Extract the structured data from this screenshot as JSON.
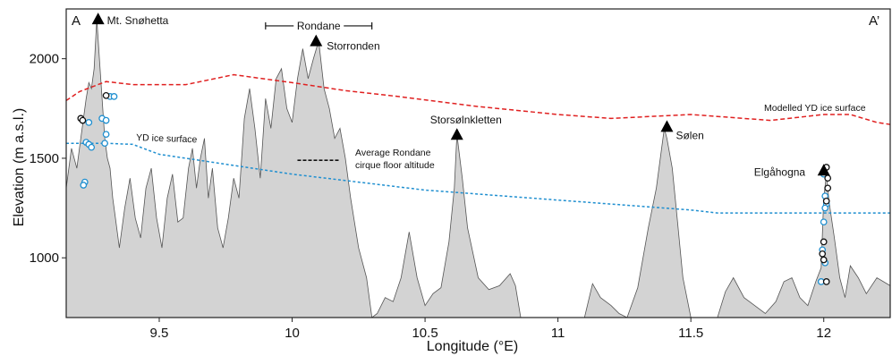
{
  "chart_data": {
    "type": "area",
    "xlabel": "Longitude (°E)",
    "ylabel": "Elevation (m a.s.l.)",
    "xlim": [
      9.15,
      12.25
    ],
    "ylim": [
      700,
      2250
    ],
    "xticks": [
      9.5,
      10,
      10.5,
      11,
      11.5,
      12
    ],
    "yticks": [
      1000,
      1500,
      2000
    ],
    "section_labels": {
      "start": "A",
      "end": "A’"
    },
    "terrain_profile": {
      "x": [
        9.15,
        9.17,
        9.19,
        9.205,
        9.215,
        9.225,
        9.235,
        9.245,
        9.255,
        9.265,
        9.275,
        9.285,
        9.295,
        9.305,
        9.315,
        9.325,
        9.335,
        9.35,
        9.37,
        9.39,
        9.41,
        9.43,
        9.45,
        9.47,
        9.49,
        9.51,
        9.53,
        9.55,
        9.57,
        9.59,
        9.61,
        9.625,
        9.64,
        9.655,
        9.67,
        9.685,
        9.7,
        9.72,
        9.74,
        9.76,
        9.78,
        9.8,
        9.82,
        9.84,
        9.86,
        9.88,
        9.9,
        9.92,
        9.94,
        9.96,
        9.98,
        10.0,
        10.02,
        10.04,
        10.06,
        10.08,
        10.1,
        10.12,
        10.14,
        10.16,
        10.18,
        10.2,
        10.22,
        10.25,
        10.28,
        10.3,
        10.32,
        10.35,
        10.38,
        10.41,
        10.44,
        10.47,
        10.5,
        10.53,
        10.56,
        10.59,
        10.61,
        10.62,
        10.64,
        10.66,
        10.7,
        10.74,
        10.78,
        10.82,
        10.84,
        10.86,
        10.9,
        10.95,
        11.0,
        11.05,
        11.1,
        11.13,
        11.16,
        11.2,
        11.23,
        11.26,
        11.3,
        11.34,
        11.37,
        11.39,
        11.4,
        11.41,
        11.43,
        11.45,
        11.47,
        11.5,
        11.53,
        11.56,
        11.6,
        11.63,
        11.66,
        11.7,
        11.74,
        11.78,
        11.82,
        11.85,
        11.88,
        11.91,
        11.94,
        11.97,
        11.99,
        12.0,
        12.01,
        12.02,
        12.04,
        12.06,
        12.08,
        12.1,
        12.13,
        12.16,
        12.2,
        12.25
      ],
      "elevation": [
        1350,
        1550,
        1450,
        1600,
        1700,
        1800,
        1880,
        1850,
        1950,
        2200,
        2000,
        1800,
        1600,
        1500,
        1450,
        1300,
        1200,
        1050,
        1250,
        1400,
        1200,
        1100,
        1350,
        1450,
        1200,
        1050,
        1300,
        1420,
        1180,
        1200,
        1450,
        1550,
        1350,
        1500,
        1600,
        1300,
        1450,
        1150,
        1050,
        1200,
        1400,
        1300,
        1700,
        1850,
        1650,
        1400,
        1800,
        1650,
        1900,
        1950,
        1750,
        1680,
        1900,
        2050,
        1900,
        2000,
        2090,
        1850,
        1750,
        1600,
        1650,
        1500,
        1300,
        1050,
        900,
        700,
        720,
        800,
        780,
        900,
        1130,
        900,
        760,
        820,
        850,
        1080,
        1350,
        1620,
        1400,
        1150,
        900,
        840,
        860,
        920,
        860,
        700,
        700,
        700,
        700,
        700,
        700,
        870,
        800,
        760,
        720,
        700,
        850,
        1150,
        1350,
        1550,
        1650,
        1600,
        1450,
        1180,
        900,
        700,
        700,
        700,
        700,
        830,
        900,
        800,
        760,
        720,
        780,
        880,
        900,
        800,
        760,
        880,
        950,
        1300,
        1420,
        1280,
        1100,
        900,
        800,
        960,
        900,
        820,
        900,
        860
      ],
      "fill": "#d3d3d3",
      "stroke": "#555555"
    },
    "series": [
      {
        "name": "Modelled YD ice surface",
        "style": "dashed",
        "color": "#e02020",
        "x": [
          9.15,
          9.2,
          9.25,
          9.3,
          9.4,
          9.6,
          9.78,
          10.0,
          10.2,
          10.4,
          10.7,
          11.0,
          11.2,
          11.5,
          11.8,
          12.0,
          12.1,
          12.2,
          12.25
        ],
        "y": [
          1790,
          1835,
          1860,
          1885,
          1870,
          1870,
          1920,
          1880,
          1840,
          1810,
          1760,
          1720,
          1700,
          1720,
          1690,
          1720,
          1720,
          1680,
          1670
        ]
      },
      {
        "name": "YD ice surface",
        "style": "dotted",
        "color": "#1f8fd0",
        "x": [
          9.15,
          9.3,
          9.4,
          9.5,
          10.0,
          10.5,
          11.0,
          11.5,
          11.6,
          12.0,
          12.25
        ],
        "y": [
          1575,
          1575,
          1570,
          1520,
          1420,
          1340,
          1290,
          1240,
          1225,
          1225,
          1225
        ]
      }
    ],
    "cirque_floor": {
      "label_line1": "Average Rondane",
      "label_line2": "cirque floor altitude",
      "x": [
        10.02,
        10.18
      ],
      "y": 1490
    },
    "range_marker": {
      "label": "Rondane",
      "x": [
        9.9,
        10.3
      ],
      "y": 2165
    },
    "peaks": [
      {
        "name": "Mt. Snøhetta",
        "x": 9.27,
        "y": 2200
      },
      {
        "name": "Storronden",
        "x": 10.09,
        "y": 2090
      },
      {
        "name": "Storsølnkletten",
        "x": 10.62,
        "y": 1620
      },
      {
        "name": "Sølen",
        "x": 11.41,
        "y": 1660
      },
      {
        "name": "Elgåhogna",
        "x": 12.0,
        "y": 1440
      }
    ],
    "samples_blue": [
      {
        "x": 9.235,
        "y": 1680
      },
      {
        "x": 9.225,
        "y": 1580
      },
      {
        "x": 9.235,
        "y": 1570
      },
      {
        "x": 9.245,
        "y": 1555
      },
      {
        "x": 9.22,
        "y": 1380
      },
      {
        "x": 9.215,
        "y": 1365
      },
      {
        "x": 9.285,
        "y": 1700
      },
      {
        "x": 9.3,
        "y": 1690
      },
      {
        "x": 9.3,
        "y": 1620
      },
      {
        "x": 9.295,
        "y": 1575
      },
      {
        "x": 9.315,
        "y": 1810
      },
      {
        "x": 9.33,
        "y": 1810
      },
      {
        "x": 12.0,
        "y": 1420
      },
      {
        "x": 12.005,
        "y": 1310
      },
      {
        "x": 12.01,
        "y": 1270
      },
      {
        "x": 12.005,
        "y": 1250
      },
      {
        "x": 12.0,
        "y": 1180
      },
      {
        "x": 11.995,
        "y": 1040
      },
      {
        "x": 12.005,
        "y": 975
      },
      {
        "x": 11.99,
        "y": 880
      }
    ],
    "samples_black": [
      {
        "x": 9.205,
        "y": 1700
      },
      {
        "x": 9.212,
        "y": 1690
      },
      {
        "x": 9.3,
        "y": 1815
      },
      {
        "x": 12.01,
        "y": 1455
      },
      {
        "x": 12.015,
        "y": 1400
      },
      {
        "x": 12.015,
        "y": 1350
      },
      {
        "x": 12.01,
        "y": 1285
      },
      {
        "x": 12.0,
        "y": 1080
      },
      {
        "x": 11.995,
        "y": 1020
      },
      {
        "x": 12.0,
        "y": 990
      },
      {
        "x": 12.01,
        "y": 880
      }
    ]
  }
}
